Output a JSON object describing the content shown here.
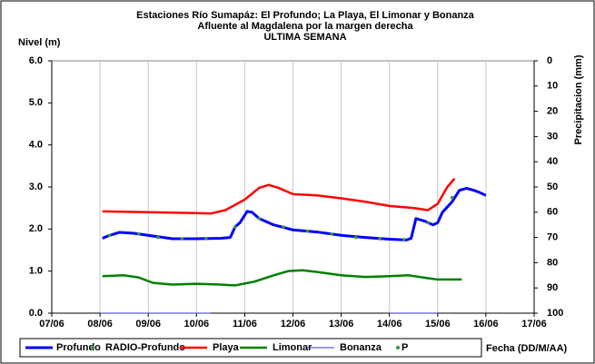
{
  "chart_data": {
    "type": "line",
    "title": "Estaciones Río Sumapáz: El Profundo; La Playa, El Limonar y Bonanza",
    "subtitle": "Afluente al Magdalena por la margen derecha",
    "subtitle2": "ULTIMA SEMANA",
    "y_label": "Nivel (m)",
    "y2_label": "Precipitacion (mm)",
    "x_label": "Fecha (DD/M/AA)",
    "xlim": [
      7,
      17
    ],
    "xticks": [
      {
        "value": 7,
        "label": "07/06"
      },
      {
        "value": 8,
        "label": "08/06"
      },
      {
        "value": 9,
        "label": "09/06"
      },
      {
        "value": 10,
        "label": "10/06"
      },
      {
        "value": 11,
        "label": "11/06"
      },
      {
        "value": 12,
        "label": "12/06"
      },
      {
        "value": 13,
        "label": "13/06"
      },
      {
        "value": 14,
        "label": "14/06"
      },
      {
        "value": 15,
        "label": "15/06"
      },
      {
        "value": 16,
        "label": "16/06"
      },
      {
        "value": 17,
        "label": "17/06"
      }
    ],
    "ylim": [
      0,
      6
    ],
    "yticks": [
      {
        "value": 0,
        "label": "0.0"
      },
      {
        "value": 1,
        "label": "1.0"
      },
      {
        "value": 2,
        "label": "2.0"
      },
      {
        "value": 3,
        "label": "3.0"
      },
      {
        "value": 4,
        "label": "4.0"
      },
      {
        "value": 5,
        "label": "5.0"
      },
      {
        "value": 6,
        "label": "6.0"
      }
    ],
    "y2lim": [
      100,
      0
    ],
    "y2ticks": [
      0,
      10,
      20,
      30,
      40,
      50,
      60,
      70,
      80,
      90,
      100
    ],
    "grid": true,
    "series": [
      {
        "name": "Profundo",
        "color": "#0000ff",
        "style": "line",
        "width": 3,
        "x": [
          8.05,
          8.2,
          8.4,
          8.7,
          9.0,
          9.5,
          10.0,
          10.5,
          10.7,
          10.8,
          10.9,
          11.05,
          11.15,
          11.3,
          11.6,
          12.0,
          12.5,
          13.0,
          13.5,
          14.0,
          14.35,
          14.45,
          14.55,
          14.75,
          14.9,
          15.0,
          15.1,
          15.3,
          15.45,
          15.6,
          15.75,
          15.85,
          16.0
        ],
        "values": [
          1.78,
          1.85,
          1.92,
          1.9,
          1.85,
          1.77,
          1.77,
          1.78,
          1.8,
          2.05,
          2.15,
          2.42,
          2.4,
          2.25,
          2.1,
          1.98,
          1.93,
          1.85,
          1.8,
          1.76,
          1.74,
          1.78,
          2.25,
          2.18,
          2.1,
          2.15,
          2.4,
          2.65,
          2.92,
          2.97,
          2.92,
          2.88,
          2.8
        ]
      },
      {
        "name": "RADIO-Profundo",
        "color": "#339933",
        "style": "dots",
        "width": 1,
        "x": [
          8.2,
          8.8,
          9.2,
          9.7,
          10.2,
          10.8,
          11.3,
          11.8,
          12.3,
          12.8,
          13.3,
          13.8,
          14.3,
          14.8,
          15.3
        ],
        "values": [
          1.85,
          1.88,
          1.8,
          1.77,
          1.77,
          2.05,
          2.25,
          2.05,
          1.95,
          1.88,
          1.8,
          1.77,
          1.75,
          2.15,
          2.75
        ]
      },
      {
        "name": "Playa",
        "color": "#ff0000",
        "style": "line",
        "width": 2.5,
        "x": [
          8.05,
          9.0,
          10.0,
          10.3,
          10.6,
          11.0,
          11.3,
          11.5,
          11.7,
          12.0,
          12.5,
          13.0,
          13.5,
          14.0,
          14.5,
          14.8,
          15.0,
          15.2,
          15.35
        ],
        "values": [
          2.42,
          2.4,
          2.38,
          2.37,
          2.45,
          2.7,
          2.98,
          3.05,
          2.98,
          2.83,
          2.8,
          2.73,
          2.65,
          2.55,
          2.5,
          2.45,
          2.6,
          3.0,
          3.2
        ]
      },
      {
        "name": "Limonar",
        "color": "#008000",
        "style": "line",
        "width": 2.5,
        "x": [
          8.05,
          8.5,
          8.8,
          9.1,
          9.5,
          10.0,
          10.5,
          10.8,
          11.2,
          11.6,
          11.9,
          12.2,
          12.5,
          13.0,
          13.5,
          14.0,
          14.4,
          14.8,
          15.0,
          15.5
        ],
        "values": [
          0.88,
          0.9,
          0.85,
          0.72,
          0.68,
          0.7,
          0.68,
          0.66,
          0.75,
          0.9,
          1.0,
          1.02,
          0.98,
          0.9,
          0.86,
          0.88,
          0.9,
          0.83,
          0.8,
          0.8
        ]
      },
      {
        "name": "Bonanza",
        "color": "#3333cc",
        "style": "line",
        "width": 1,
        "x": [
          8.0,
          10.3,
          null,
          14.0,
          15.0
        ],
        "values": [
          0,
          0,
          null,
          0,
          0
        ]
      },
      {
        "name": "P",
        "color": "#339933",
        "style": "dots",
        "width": 1,
        "axis": "y2",
        "x": [],
        "values": []
      }
    ]
  }
}
